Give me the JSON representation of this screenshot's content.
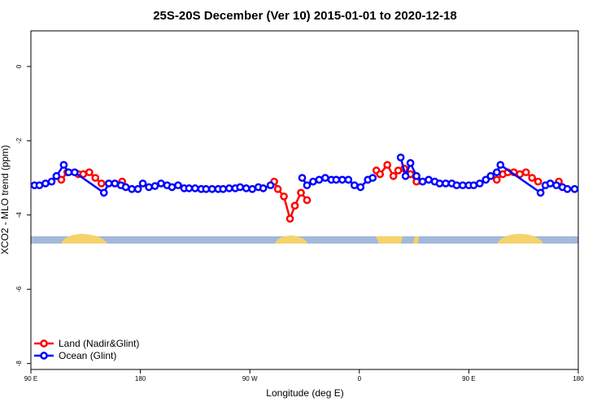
{
  "chart_data": {
    "type": "line",
    "title": "25S-20S December (Ver 10)   2015-01-01 to 2020-12-18",
    "xlabel": "Longitude (deg E)",
    "ylabel": "XCO2 - MLO trend (ppm)",
    "xlim": [
      90,
      540
    ],
    "ylim": [
      -8.16,
      0.96
    ],
    "xticks": [
      {
        "value": 90,
        "label": "90 E"
      },
      {
        "value": 180,
        "label": "180"
      },
      {
        "value": 270,
        "label": "90 W"
      },
      {
        "value": 360,
        "label": "0"
      },
      {
        "value": 450,
        "label": "90 E"
      },
      {
        "value": 540,
        "label": "180"
      }
    ],
    "yticks": [
      -8,
      -6,
      -4,
      -2,
      0
    ],
    "legend": "bottomleft",
    "series": [
      {
        "name": "Land (Nadir&Glint)",
        "color": "#ff0000",
        "x": [
          115,
          120,
          129,
          133,
          138,
          143,
          148,
          null,
          165,
          null,
          290,
          293,
          298,
          303,
          307,
          312,
          317,
          null,
          374,
          377,
          383,
          388,
          392,
          397,
          402,
          407,
          null,
          473,
          478,
          482,
          487,
          492,
          497,
          502,
          507,
          null,
          524
        ],
        "values": [
          -3.05,
          -2.85,
          -2.9,
          -2.9,
          -2.85,
          -3.0,
          -3.15,
          null,
          -3.1,
          null,
          -3.1,
          -3.3,
          -3.5,
          -4.1,
          -3.75,
          -3.4,
          -3.6,
          null,
          -2.8,
          -2.9,
          -2.65,
          -2.95,
          -2.8,
          -2.75,
          -2.9,
          -3.1,
          null,
          -3.05,
          -2.9,
          -2.85,
          -2.85,
          -2.9,
          -2.85,
          -3.0,
          -3.1,
          null,
          -3.1
        ]
      },
      {
        "name": "Ocean (Glint)",
        "color": "#0000ff",
        "x": [
          93,
          97,
          102,
          107,
          111,
          117,
          121,
          126,
          150,
          154,
          159,
          164,
          168,
          173,
          178,
          182,
          187,
          192,
          197,
          202,
          206,
          211,
          216,
          220,
          225,
          230,
          234,
          239,
          244,
          248,
          253,
          258,
          262,
          267,
          272,
          277,
          281,
          287,
          null,
          313,
          317,
          322,
          327,
          332,
          337,
          341,
          346,
          351,
          356,
          361,
          367,
          371,
          null,
          394,
          398,
          402,
          407,
          412,
          417,
          422,
          426,
          431,
          436,
          440,
          445,
          450,
          454,
          459,
          464,
          468,
          473,
          476,
          509,
          513,
          517,
          522,
          527,
          531,
          537
        ],
        "values": [
          -3.2,
          -3.2,
          -3.15,
          -3.1,
          -2.95,
          -2.65,
          -2.85,
          -2.85,
          -3.4,
          -3.15,
          -3.15,
          -3.2,
          -3.25,
          -3.3,
          -3.3,
          -3.15,
          -3.25,
          -3.22,
          -3.15,
          -3.2,
          -3.25,
          -3.2,
          -3.28,
          -3.28,
          -3.28,
          -3.3,
          -3.3,
          -3.3,
          -3.3,
          -3.3,
          -3.28,
          -3.28,
          -3.25,
          -3.28,
          -3.3,
          -3.25,
          -3.28,
          -3.2,
          null,
          -3.0,
          -3.2,
          -3.1,
          -3.05,
          -3.0,
          -3.05,
          -3.05,
          -3.05,
          -3.05,
          -3.2,
          -3.25,
          -3.05,
          -3.0,
          null,
          -2.45,
          -2.95,
          -2.6,
          -2.95,
          -3.1,
          -3.05,
          -3.1,
          -3.15,
          -3.15,
          -3.15,
          -3.2,
          -3.2,
          -3.2,
          -3.2,
          -3.15,
          -3.05,
          -2.95,
          -2.85,
          -2.65,
          -3.4,
          -3.2,
          -3.15,
          -3.2,
          -3.25,
          -3.3,
          -3.3
        ]
      }
    ]
  }
}
